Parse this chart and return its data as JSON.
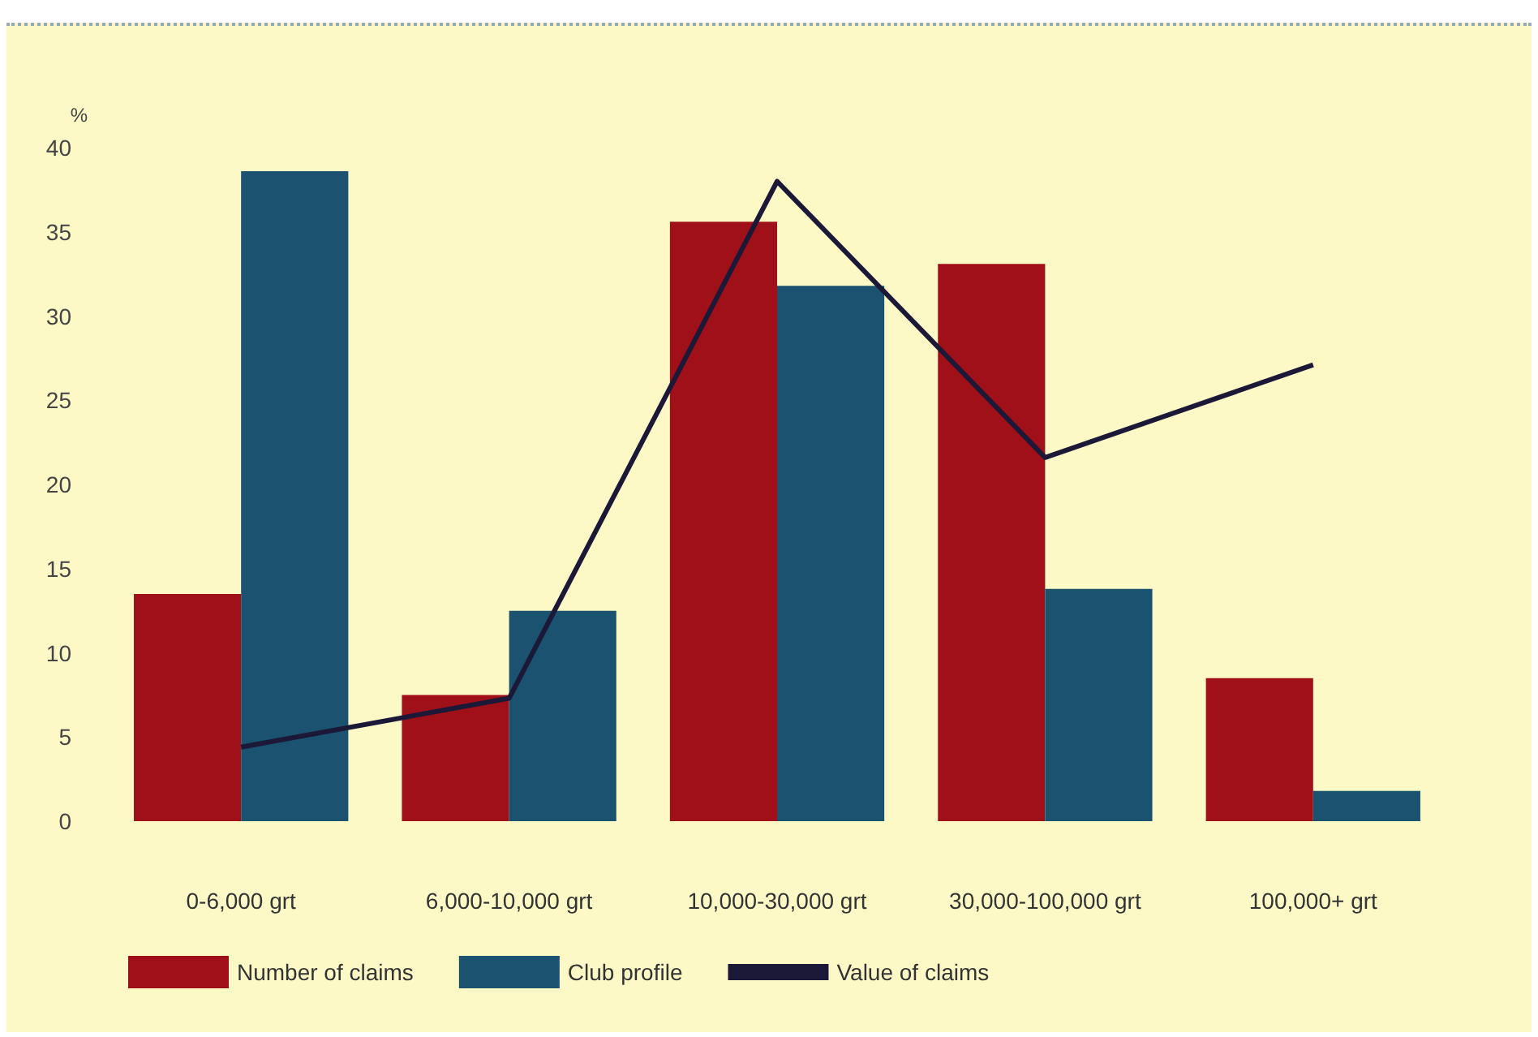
{
  "chart_data": {
    "type": "bar",
    "ylabel": "%",
    "categories": [
      "0-6,000 grt",
      "6,000-10,000 grt",
      "10,000-30,000 grt",
      "30,000-100,000 grt",
      "100,000+ grt"
    ],
    "series": [
      {
        "name": "Number of claims",
        "color": "#a01018",
        "values": [
          13.5,
          7.5,
          35.6,
          33.1,
          8.5
        ]
      },
      {
        "name": "Club profile",
        "color": "#1a5270",
        "values": [
          38.6,
          12.5,
          31.8,
          13.8,
          1.8
        ]
      },
      {
        "name": "Value of claims",
        "type": "line",
        "color": "#1c1838",
        "values": [
          4.4,
          7.3,
          38.0,
          21.6,
          27.1
        ]
      }
    ],
    "ylim": [
      0,
      40
    ],
    "yticks": [
      0,
      5,
      10,
      15,
      20,
      25,
      30,
      35,
      40
    ],
    "grid": false,
    "legend": "bottom left",
    "marker": "none"
  }
}
